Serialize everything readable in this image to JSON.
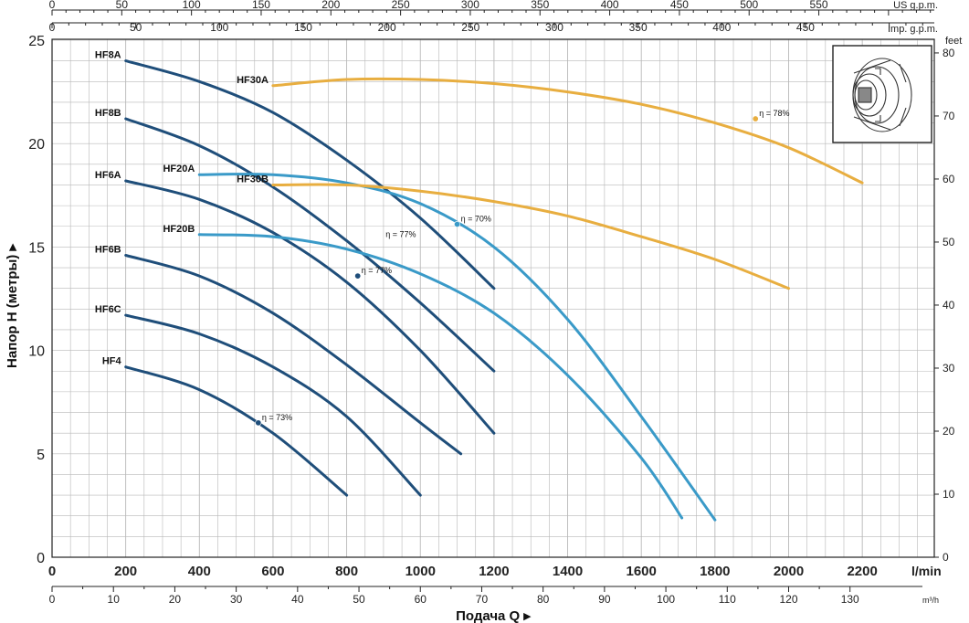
{
  "chart_data": {
    "type": "line",
    "x_primary": {
      "unit": "l/min",
      "range": [
        0,
        2400
      ],
      "ticks": [
        "0",
        "200",
        "400",
        "600",
        "800",
        "1000",
        "1200",
        "1400",
        "1600",
        "1800",
        "2000",
        "2200"
      ]
    },
    "x_m3h": {
      "unit": "m³/h",
      "ticks": [
        "0",
        "10",
        "20",
        "30",
        "40",
        "50",
        "60",
        "70",
        "80",
        "90",
        "100",
        "110",
        "120",
        "130"
      ]
    },
    "x_us_gpm": {
      "label": "US g.p.m.",
      "ticks": [
        "0",
        "50",
        "100",
        "150",
        "200",
        "250",
        "300",
        "350",
        "400",
        "450",
        "500",
        "550"
      ]
    },
    "x_imp_gpm": {
      "label": "Imp. g.p.m.",
      "ticks": [
        "0",
        "50",
        "100",
        "150",
        "200",
        "250",
        "300",
        "350",
        "400",
        "450"
      ]
    },
    "y_primary": {
      "label": "Напор Н (метры)",
      "range": [
        0,
        25
      ],
      "ticks": [
        "0",
        "5",
        "10",
        "15",
        "20",
        "25"
      ]
    },
    "y_feet": {
      "label": "feet",
      "ticks": [
        "0",
        "10",
        "20",
        "30",
        "40",
        "50",
        "60",
        "70",
        "80"
      ]
    },
    "xlabel": "Подача Q",
    "grid": true,
    "series": [
      {
        "name": "HF8A",
        "color": "#1f4e7a",
        "x": [
          200,
          400,
          600,
          800,
          1000,
          1200
        ],
        "y": [
          24.0,
          23.0,
          21.5,
          19.2,
          16.4,
          13.0
        ]
      },
      {
        "name": "HF8B",
        "color": "#1f4e7a",
        "x": [
          200,
          400,
          600,
          800,
          1000,
          1200
        ],
        "y": [
          21.2,
          19.9,
          17.9,
          15.3,
          12.3,
          9.0
        ]
      },
      {
        "name": "HF6A",
        "color": "#1f4e7a",
        "x": [
          200,
          400,
          600,
          800,
          1000,
          1200
        ],
        "y": [
          18.2,
          17.3,
          15.7,
          13.3,
          10.0,
          6.0
        ]
      },
      {
        "name": "HF6B",
        "color": "#1f4e7a",
        "x": [
          200,
          400,
          600,
          800,
          1000,
          1110
        ],
        "y": [
          14.6,
          13.6,
          11.8,
          9.3,
          6.5,
          5.0
        ]
      },
      {
        "name": "HF6C",
        "color": "#1f4e7a",
        "x": [
          200,
          400,
          600,
          800,
          1000
        ],
        "y": [
          11.7,
          10.8,
          9.2,
          6.8,
          3.0
        ]
      },
      {
        "name": "HF4",
        "color": "#1f4e7a",
        "x": [
          200,
          400,
          600,
          800
        ],
        "y": [
          9.2,
          8.1,
          6.0,
          3.0
        ]
      },
      {
        "name": "HF20A",
        "color": "#3a9ac8",
        "x": [
          400,
          600,
          800,
          1000,
          1200,
          1400,
          1600,
          1800
        ],
        "y": [
          18.5,
          18.5,
          18.1,
          17.1,
          15.0,
          11.5,
          6.8,
          1.8
        ]
      },
      {
        "name": "HF20B",
        "color": "#3a9ac8",
        "x": [
          400,
          600,
          800,
          1000,
          1200,
          1400,
          1600,
          1710
        ],
        "y": [
          15.6,
          15.5,
          14.9,
          13.7,
          11.8,
          8.8,
          4.8,
          1.9
        ]
      },
      {
        "name": "HF30A",
        "color": "#e8ae40",
        "x": [
          600,
          800,
          1000,
          1200,
          1400,
          1600,
          1800,
          2000,
          2200
        ],
        "y": [
          22.8,
          23.1,
          23.1,
          22.9,
          22.5,
          21.9,
          21.0,
          19.8,
          18.1
        ]
      },
      {
        "name": "HF30B",
        "color": "#e8ae40",
        "x": [
          600,
          800,
          1000,
          1200,
          1400,
          1600,
          1800,
          2000
        ],
        "y": [
          18.0,
          18.0,
          17.7,
          17.2,
          16.5,
          15.5,
          14.4,
          13.0
        ]
      }
    ],
    "efficiency_points": [
      {
        "x": 560,
        "y": 6.5,
        "label": "η = 73%",
        "color": "#1f4e7a"
      },
      {
        "x": 830,
        "y": 13.6,
        "label": "η = 77%",
        "color": "#1f4e7a"
      },
      {
        "x": 1100,
        "y": 16.1,
        "label": "η = 70%",
        "color": "#3a9ac8"
      },
      {
        "x": 1910,
        "y": 21.2,
        "label": "η = 78%",
        "color": "#e8ae40"
      }
    ],
    "annotations": [
      {
        "x": 1000,
        "y": 16.4,
        "label": "η = 77%"
      }
    ]
  }
}
